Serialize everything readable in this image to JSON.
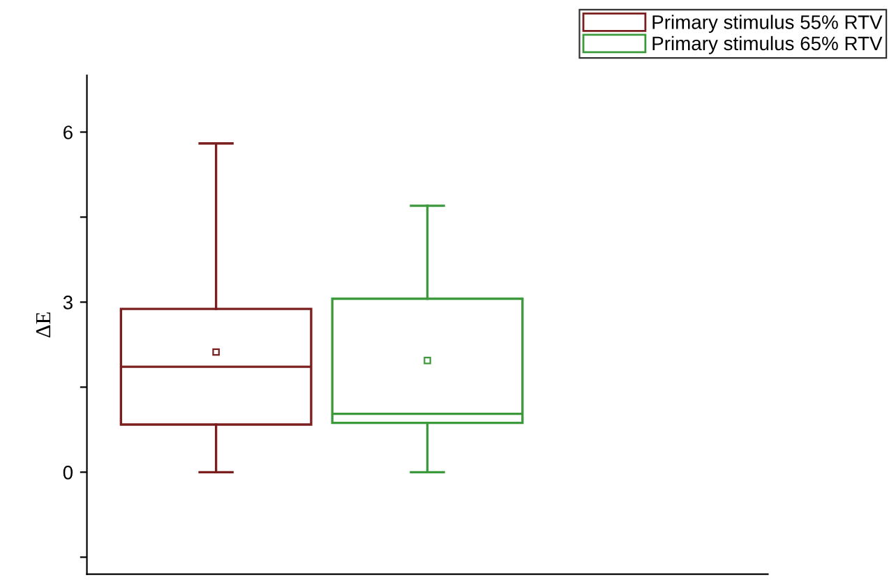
{
  "chart_data": {
    "type": "box",
    "ylabel": "ΔE",
    "categories": [
      null
    ],
    "series": [
      {
        "name": "Primary stimulus 55% RTV",
        "color": "#7a1e1e",
        "boxes": [
          {
            "low": 0,
            "q1": 0.84,
            "median": 1.86,
            "q3": 2.88,
            "high": 5.8,
            "mean": 2.12
          }
        ]
      },
      {
        "name": "Primary stimulus 65% RTV",
        "color": "#3c9a3c",
        "boxes": [
          {
            "low": 0,
            "q1": 0.87,
            "median": 1.03,
            "q3": 3.06,
            "high": 4.7,
            "mean": 1.97
          }
        ]
      }
    ],
    "ylim": [
      -1.8,
      7
    ],
    "yticks": [
      {
        "value": -1.5,
        "label": null
      },
      0,
      {
        "value": 1.5,
        "label": null
      },
      3,
      {
        "value": 4.5,
        "label": null
      },
      6
    ],
    "tick_labels": "y",
    "legend": "top right",
    "grid": false
  }
}
